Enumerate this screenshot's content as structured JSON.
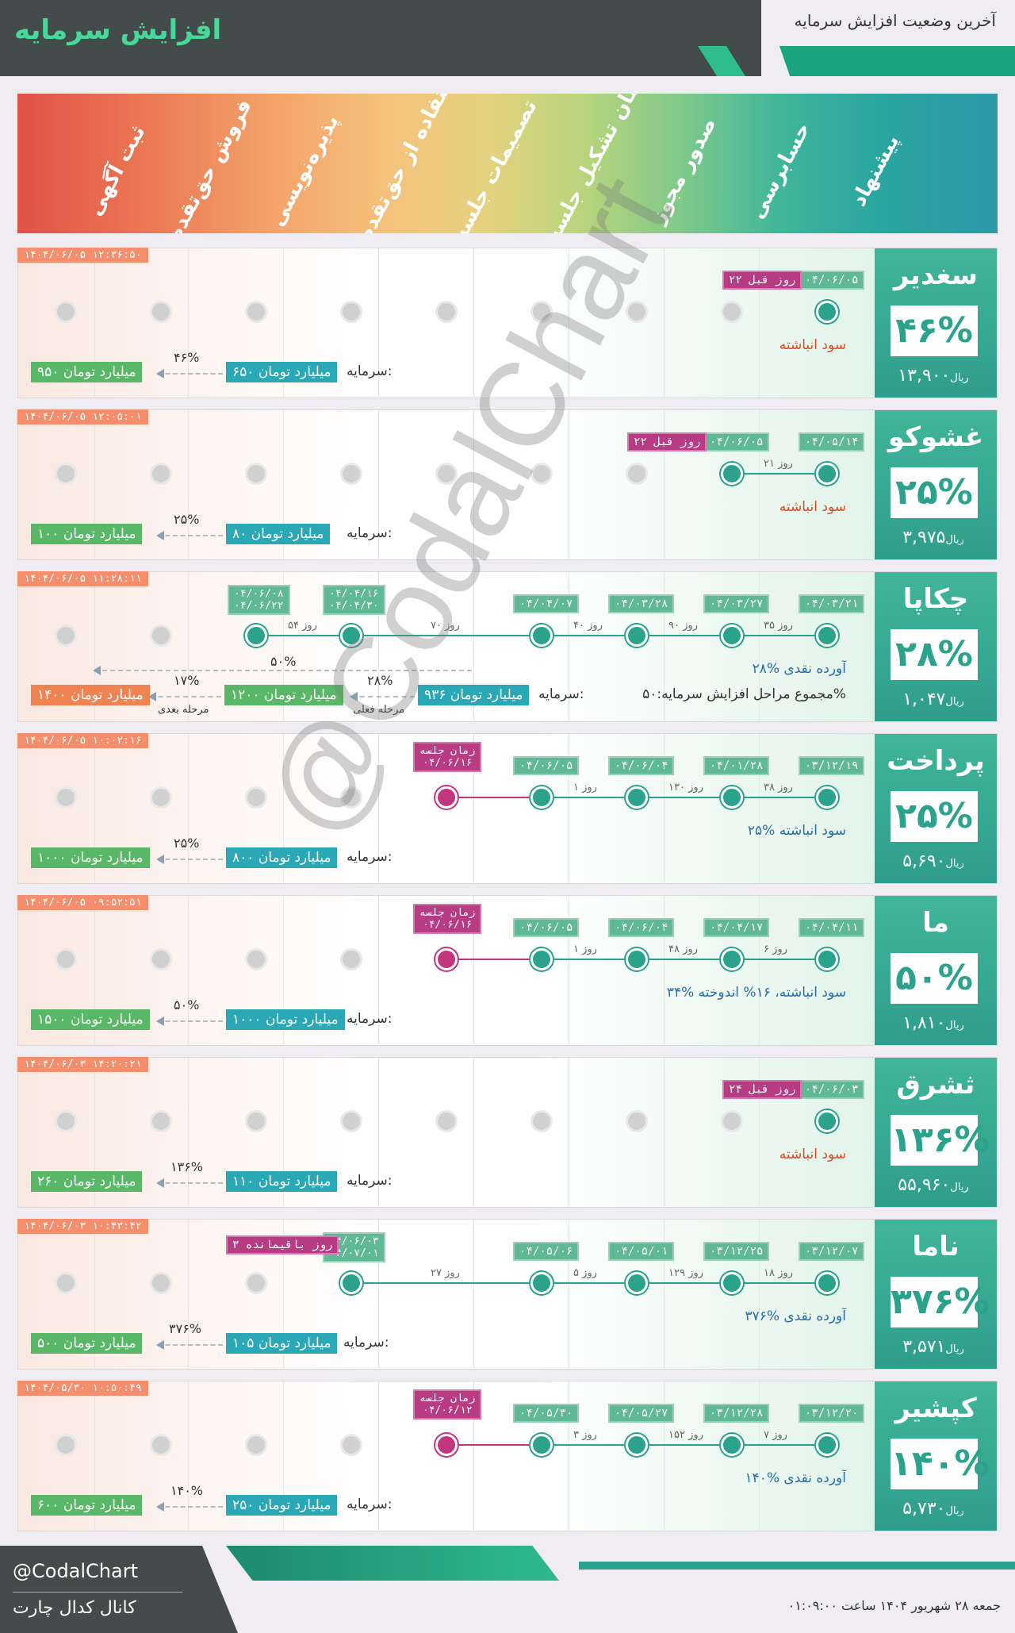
{
  "header": {
    "title": "افزایش سرمایه",
    "subtitle": "آخرین وضعیت افزایش سرمایه"
  },
  "stages": [
    "ثبت آگهی",
    "فروش حق‌تقدم",
    "پذیره‌نویسی",
    "استفاده از حق‌تقدم",
    "تصمیمات جلسه",
    "زمان تشکیل جلسه",
    "صدور مجوز",
    "حسابرسی",
    "پیشنهاد"
  ],
  "labels": {
    "capital": "سرمایه:",
    "unit": "ریال"
  },
  "cards": [
    {
      "name": "سغدیر",
      "pct": "۴۶%",
      "price": "۱۳,۹۰۰",
      "ts": "۱۴۰۴/۰۶/۰۵ ۱۲:۳۶:۵۰",
      "note": "سود انباشته",
      "cap_from": "۶۵۰ میلیارد تومان",
      "cap_to": "۹۵۰ میلیارد تومان",
      "pc": "۴۶%",
      "d1": "۰۴/۰۶/۰۵",
      "ago": "۲۲ روز قبل"
    },
    {
      "name": "غشوکو",
      "pct": "۲۵%",
      "price": "۳,۹۷۵",
      "ts": "۱۴۰۴/۰۶/۰۵ ۱۲:۰۵:۰۱",
      "note": "سود انباشته",
      "cap_from": "۸۰ میلیارد تومان",
      "cap_to": "۱۰۰ میلیارد تومان",
      "pc": "۲۵%",
      "d1": "۰۴/۰۵/۱۴",
      "d2": "۰۴/۰۶/۰۵",
      "ago": "۲۲ روز قبل",
      "gap1": "۲۱ روز"
    },
    {
      "name": "چکاپا",
      "pct": "۲۸%",
      "price": "۱,۰۴۷",
      "ts": "۱۴۰۴/۰۶/۰۵ ۱۱:۲۸:۱۱",
      "note": "۲۸% آورده نقدی",
      "note2": "مجموع مراحل افزایش سرمایه:۵۰%",
      "cap_from": "۹۳۶ میلیارد تومان",
      "cap_mid": "۱۲۰۰ میلیارد تومان",
      "cap_to": "۱۴۰۰ میلیارد تومان",
      "pc": "۲۸%",
      "pc2": "۱۷%",
      "pc3": "۵۰%",
      "cur": "مرحله فعلی",
      "next": "مرحله بعدی",
      "d1": "۰۴/۰۳/۲۱",
      "d2": "۰۴/۰۳/۲۷",
      "d3": "۰۴/۰۳/۲۸",
      "d4": "۰۴/۰۴/۰۷",
      "d5a": "۰۴/۰۴/۱۶",
      "d5b": "۰۴/۰۴/۳۰",
      "d6a": "۰۴/۰۶/۰۸",
      "d6b": "۰۴/۰۶/۲۲",
      "g1": "۳۵ روز",
      "g2": "۹۰ روز",
      "g3": "۴۰ روز",
      "g4": "۷۰ روز",
      "g5": "۵۴ روز"
    },
    {
      "name": "پرداخت",
      "pct": "۲۵%",
      "price": "۵,۶۹۰",
      "ts": "۱۴۰۴/۰۶/۰۵ ۱۰:۰۲:۱۶",
      "note": "۲۵% سود انباشته",
      "cap_from": "۸۰۰ میلیارد تومان",
      "cap_to": "۱۰۰۰ میلیارد تومان",
      "pc": "۲۵%",
      "d1": "۰۳/۱۲/۱۹",
      "d2": "۰۴/۰۱/۲۸",
      "d3": "۰۴/۰۶/۰۴",
      "d4": "۰۴/۰۶/۰۵",
      "meet": "زمان جلسه",
      "meetd": "۰۴/۰۶/۱۶",
      "g1": "۳۸ روز",
      "g2": "۱۳۰ روز",
      "g3": "۱ روز"
    },
    {
      "name": "ما",
      "pct": "۵۰%",
      "price": "۱,۸۱۰",
      "ts": "۱۴۰۴/۰۶/۰۵ ۰۹:۵۲:۵۱",
      "note": "۳۴% سود انباشته، ۱۶% اندوخته",
      "cap_from": "۱۰۰۰ میلیارد تومان",
      "cap_to": "۱۵۰۰ میلیارد تومان",
      "pc": "۵۰%",
      "d1": "۰۴/۰۴/۱۱",
      "d2": "۰۴/۰۴/۱۷",
      "d3": "۰۴/۰۶/۰۴",
      "d4": "۰۴/۰۶/۰۵",
      "meet": "زمان جلسه",
      "meetd": "۰۴/۰۶/۱۶",
      "g1": "۶ روز",
      "g2": "۴۸ روز",
      "g3": "۱ روز"
    },
    {
      "name": "ثشرق",
      "pct": "۱۳۶%",
      "price": "۵۵,۹۶۰",
      "ts": "۱۴۰۴/۰۶/۰۳ ۱۴:۲۰:۲۱",
      "note": "سود انباشته",
      "cap_from": "۱۱۰ میلیارد تومان",
      "cap_to": "۲۶۰ میلیارد تومان",
      "pc": "۱۳۶%",
      "d1": "۰۴/۰۶/۰۳",
      "ago": "۲۴ روز قبل"
    },
    {
      "name": "ناما",
      "pct": "۳۷۶%",
      "price": "۳,۵۷۱",
      "ts": "۱۴۰۴/۰۶/۰۳ ۱۰:۴۳:۴۲",
      "note": "۳۷۶% آورده نقدی",
      "cap_from": "۱۰۵ میلیارد تومان",
      "cap_to": "۵۰۰ میلیارد تومان",
      "pc": "۳۷۶%",
      "d1": "۰۳/۱۲/۰۷",
      "d2": "۰۳/۱۲/۲۵",
      "d3": "۰۴/۰۵/۰۱",
      "d4": "۰۴/۰۵/۰۶",
      "d5a": "۰۴/۰۶/۰۳",
      "d5b": "۰۴/۰۷/۰۱",
      "left": "۳ روز باقیمانده",
      "g1": "۱۸ روز",
      "g2": "۱۲۹ روز",
      "g3": "۵ روز",
      "g4": "۲۷ روز"
    },
    {
      "name": "کپشیر",
      "pct": "۱۴۰%",
      "price": "۵,۷۳۰",
      "ts": "۱۴۰۴/۰۵/۳۰ ۱۰:۵۰:۴۹",
      "note": "۱۴۰% آورده نقدی",
      "cap_from": "۲۵۰ میلیارد تومان",
      "cap_to": "۶۰۰ میلیارد تومان",
      "pc": "۱۴۰%",
      "d1": "۰۳/۱۲/۲۰",
      "d2": "۰۳/۱۲/۲۸",
      "d3": "۰۴/۰۵/۲۷",
      "d4": "۰۴/۰۵/۳۰",
      "meet": "زمان جلسه",
      "meetd": "۰۴/۰۶/۱۲",
      "g1": "۷ روز",
      "g2": "۱۵۲ روز",
      "g3": "۳ روز"
    }
  ],
  "watermark": "@CodalChart",
  "footer": {
    "handle": "@CodalChart",
    "channel": "کانال کدال چارت",
    "date": "جمعه ۲۸ شهریور ۱۴۰۴ ساعت ۰۱:۰۹:۰۰"
  }
}
